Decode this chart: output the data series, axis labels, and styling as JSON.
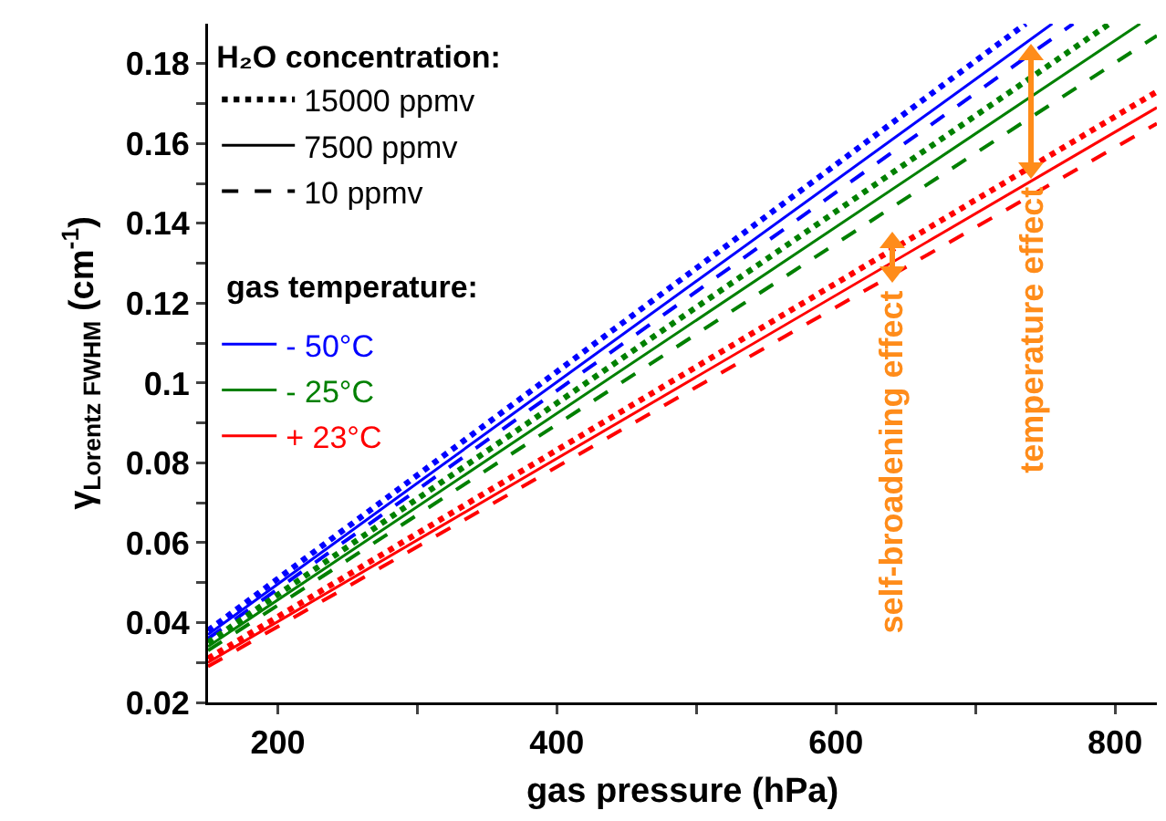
{
  "chart_data": {
    "type": "line",
    "xlabel": "gas pressure (hPa)",
    "ylabel": "γ$_{Lorentz FWHM}$ (cm$^{-1}$)",
    "legend_title": "H₂O concentration:",
    "xlim": [
      150,
      830
    ],
    "xticks": [
      200,
      {
        "value": 300,
        "label": null
      },
      400,
      {
        "value": 500,
        "label": null
      },
      600,
      {
        "value": 700,
        "label": null
      },
      800
    ],
    "ylim": [
      0.02,
      0.19
    ],
    "yticks": [
      0.02,
      {
        "value": 0.03,
        "label": null
      },
      0.04,
      {
        "value": 0.05,
        "label": null
      },
      0.06,
      {
        "value": 0.07,
        "label": null
      },
      0.08,
      {
        "value": 0.09,
        "label": null
      },
      0.1,
      {
        "value": 0.11,
        "label": null
      },
      0.12,
      {
        "value": 0.13,
        "label": null
      },
      0.14,
      {
        "value": 0.15,
        "label": null
      },
      0.16,
      {
        "value": 0.17,
        "label": null
      },
      0.18
    ],
    "grid": false,
    "legend": "top left",
    "marker": "none",
    "series": [
      {
        "name": "15000 ppmv",
        "color": "#000000",
        "line_style": "dotted",
        "values": [
          null
        ]
      },
      {
        "name": "7500 ppmv",
        "color": "#000000",
        "line_style": "solid",
        "values": [
          null
        ]
      },
      {
        "name": "10 ppmv",
        "color": "#000000",
        "line_style": "dashed",
        "values": [
          null
        ]
      },
      {
        "color": "#0000ff",
        "line_style": "dotted",
        "x": [
          150,
          736
        ],
        "values": [
          0.038,
          0.19
        ]
      },
      {
        "name": "- 50°C",
        "color": "#0000ff",
        "line_style": "solid",
        "x": [
          150,
          755
        ],
        "values": [
          0.037,
          0.19
        ]
      },
      {
        "color": "#0000ff",
        "line_style": "dashed",
        "x": [
          150,
          770
        ],
        "values": [
          0.036,
          0.19
        ]
      },
      {
        "color": "#008000",
        "line_style": "dotted",
        "x": [
          150,
          796
        ],
        "values": [
          0.035,
          0.19
        ]
      },
      {
        "name": "- 25°C",
        "color": "#008000",
        "line_style": "solid",
        "x": [
          150,
          818
        ],
        "values": [
          0.034,
          0.19
        ]
      },
      {
        "color": "#008000",
        "line_style": "dashed",
        "x": [
          150,
          830
        ],
        "values": [
          0.033,
          0.187
        ]
      },
      {
        "color": "#ff0000",
        "line_style": "dotted",
        "x": [
          150,
          830
        ],
        "values": [
          0.031,
          0.173
        ]
      },
      {
        "name": "+ 23°C",
        "color": "#ff0000",
        "line_style": "solid",
        "x": [
          150,
          830
        ],
        "values": [
          0.03,
          0.169
        ]
      },
      {
        "color": "#ff0000",
        "line_style": "dashed",
        "x": [
          150,
          830
        ],
        "values": [
          0.029,
          0.165
        ]
      }
    ],
    "annotations": [
      "gas temperature:",
      "self-broadening effect",
      "temperature effect"
    ]
  }
}
